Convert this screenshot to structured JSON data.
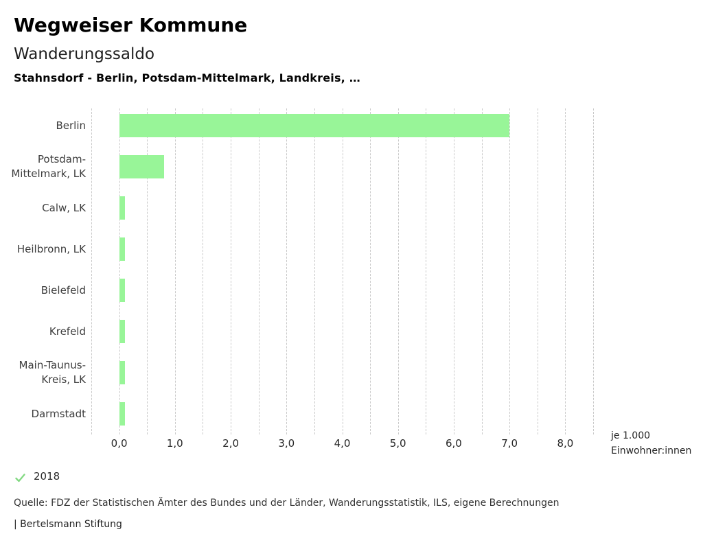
{
  "header": {
    "title": "Wegweiser Kommune",
    "subtitle": "Wanderungssaldo",
    "caption": "Stahnsdorf - Berlin, Potsdam-Mittelmark, Landkreis, …"
  },
  "chart_data": {
    "type": "bar",
    "orientation": "horizontal",
    "title": "Wanderungssaldo",
    "subtitle": "Stahnsdorf - Berlin, Potsdam-Mittelmark, Landkreis, …",
    "categories": [
      [
        "Berlin"
      ],
      [
        "Potsdam-",
        "Mittelmark, LK"
      ],
      [
        "Calw, LK"
      ],
      [
        "Heilbronn, LK"
      ],
      [
        "Bielefeld"
      ],
      [
        "Krefeld"
      ],
      [
        "Main-Taunus-",
        "Kreis, LK"
      ],
      [
        "Darmstadt"
      ]
    ],
    "values": [
      7.0,
      0.8,
      0.1,
      0.1,
      0.1,
      0.1,
      0.1,
      0.1
    ],
    "series_name": "2018",
    "xlim": [
      -0.5,
      8.5
    ],
    "tick_values": [
      0,
      1,
      2,
      3,
      4,
      5,
      6,
      7,
      8
    ],
    "tick_labels": [
      "0,0",
      "1,0",
      "2,0",
      "3,0",
      "4,0",
      "5,0",
      "6,0",
      "7,0",
      "8,0"
    ],
    "gridline_step": 0.5,
    "grid": true,
    "legend_position": "bottom-left",
    "bar_color": "#98f598",
    "xlabel_lines": [
      "je 1.000",
      "Einwohner:innen"
    ]
  },
  "legend": {
    "check_icon": "check-icon",
    "year": "2018",
    "check_color": "#82d982"
  },
  "footer": {
    "source": "Quelle: FDZ der Statistischen Ämter des Bundes und der Länder, Wanderungsstatistik, ILS, eigene Berechnungen",
    "brand": "| Bertelsmann Stiftung"
  },
  "colors": {
    "bar_green": "#98f598",
    "check_green": "#82d982",
    "gridline_gray": "#c9c9c9"
  }
}
